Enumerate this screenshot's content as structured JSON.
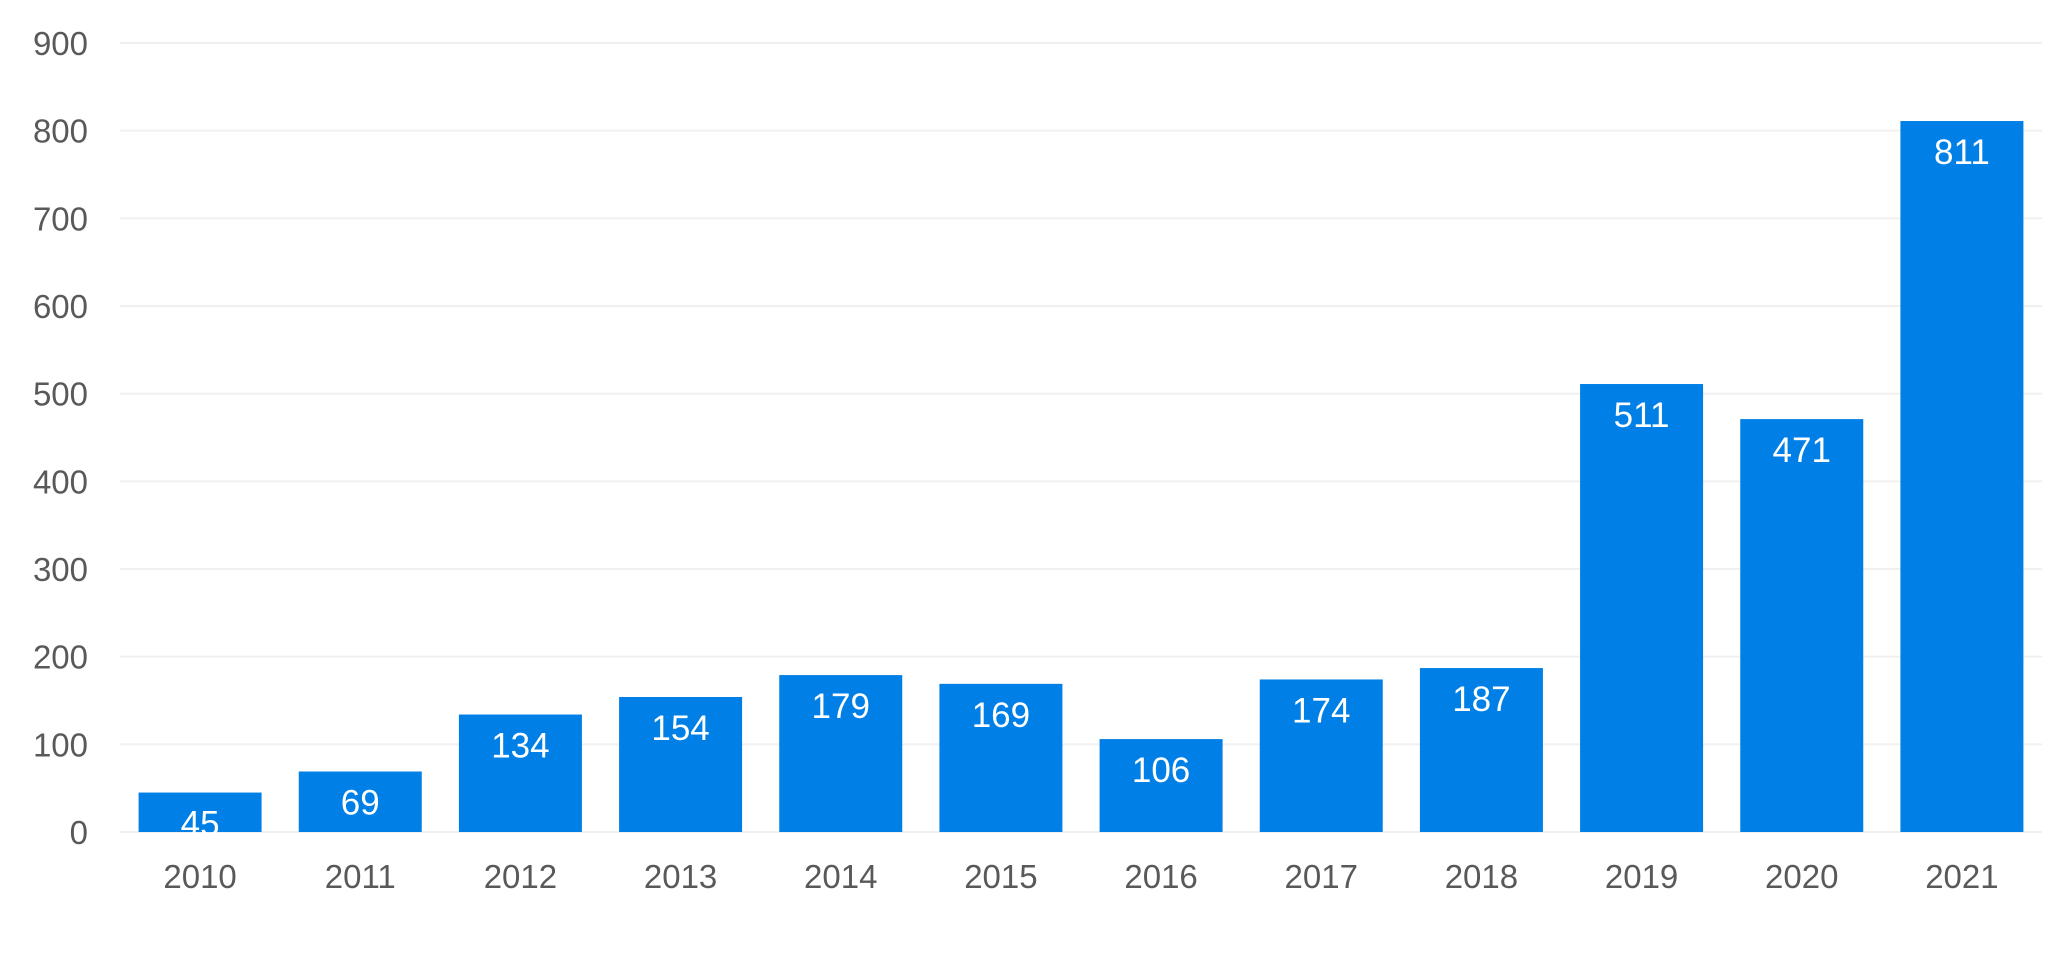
{
  "chart_data": {
    "type": "bar",
    "categories": [
      "2010",
      "2011",
      "2012",
      "2013",
      "2014",
      "2015",
      "2016",
      "2017",
      "2018",
      "2019",
      "2020",
      "2021"
    ],
    "values": [
      45,
      69,
      134,
      154,
      179,
      169,
      106,
      174,
      187,
      511,
      471,
      811
    ],
    "y_ticks": [
      0,
      100,
      200,
      300,
      400,
      500,
      600,
      700,
      800,
      900
    ],
    "ylim": [
      0,
      900
    ],
    "title": "",
    "xlabel": "",
    "ylabel": "",
    "grid": "horizontal",
    "legend": "none",
    "bar_color": "#0080e6",
    "grid_color": "#f0f0f0",
    "tick_label_color": "#595959",
    "data_label_color": "#ffffff"
  }
}
